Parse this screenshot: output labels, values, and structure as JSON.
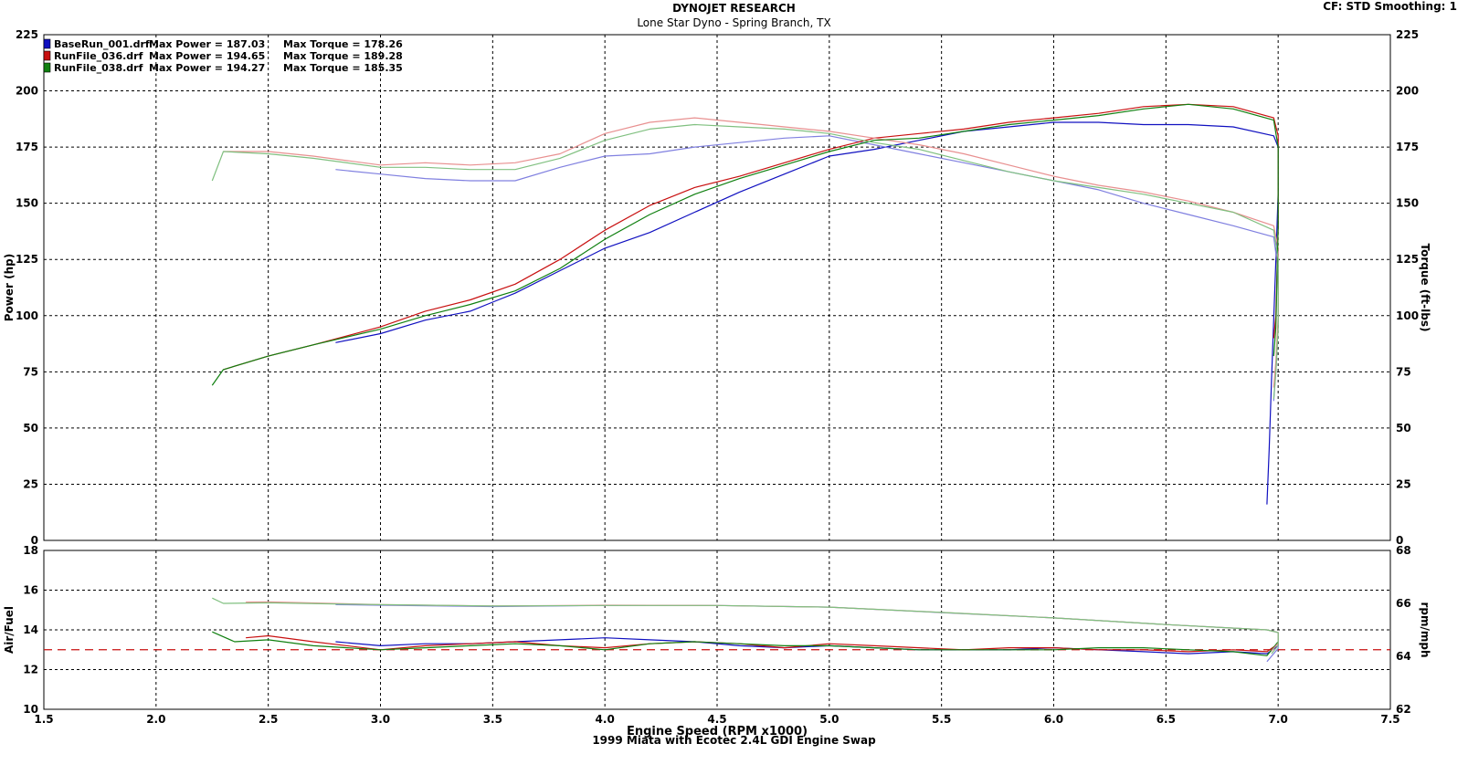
{
  "header": {
    "title": "DYNOJET RESEARCH",
    "subtitle": "Lone Star Dyno - Spring Branch, TX",
    "top_right": "CF: STD  Smoothing: 1",
    "footer": "1999 Miata with Ecotec 2.4L GDI Engine Swap"
  },
  "chart_data": [
    {
      "type": "line",
      "name": "power-torque",
      "xlabel": "Engine Speed (RPM x1000)",
      "ylabel": "Power (hp)",
      "y2label": "Torque (ft-lbs)",
      "xlim": [
        1.5,
        7.5
      ],
      "ylim": [
        0,
        225
      ],
      "y2lim": [
        0,
        225
      ],
      "x_ticks": [
        "1.5",
        "2.0",
        "2.5",
        "3.0",
        "3.5",
        "4.0",
        "4.5",
        "5.0",
        "5.5",
        "6.0",
        "6.5",
        "7.0",
        "7.5"
      ],
      "y_ticks": [
        "0",
        "25",
        "50",
        "75",
        "100",
        "125",
        "150",
        "175",
        "200",
        "225"
      ],
      "grid": true,
      "legend_position": "top-left",
      "legend": [
        {
          "file": "BaseRun_001.drf",
          "power_text": "Max Power = 187.03",
          "torque_text": "Max Torque = 178.26",
          "color": "#1010c0"
        },
        {
          "file": "RunFile_036.drf",
          "power_text": "Max Power = 194.65",
          "torque_text": "Max Torque = 189.28",
          "color": "#c81010"
        },
        {
          "file": "RunFile_038.drf",
          "power_text": "Max Power = 194.27",
          "torque_text": "Max Torque = 185.35",
          "color": "#108010"
        }
      ],
      "series": [
        {
          "name": "BaseRun_001.drf",
          "metric": "power",
          "color": "#1010c0",
          "x": [
            2.8,
            3.0,
            3.2,
            3.4,
            3.5,
            3.6,
            3.8,
            4.0,
            4.2,
            4.4,
            4.6,
            4.8,
            5.0,
            5.2,
            5.4,
            5.6,
            5.8,
            6.0,
            6.2,
            6.4,
            6.6,
            6.8,
            6.98,
            7.0,
            7.0,
            6.99,
            6.98,
            6.97,
            6.96,
            6.95
          ],
          "y": [
            88,
            92,
            98,
            102,
            106,
            110,
            120,
            130,
            137,
            146,
            155,
            163,
            171,
            174,
            178,
            182,
            184,
            186,
            186,
            185,
            185,
            184,
            180,
            175,
            155,
            125,
            98,
            70,
            40,
            16
          ]
        },
        {
          "name": "BaseRun_001.drf",
          "metric": "torque",
          "color": "#8080e0",
          "x": [
            2.8,
            3.0,
            3.2,
            3.4,
            3.6,
            3.8,
            4.0,
            4.2,
            4.4,
            4.6,
            4.8,
            5.0,
            5.2,
            5.4,
            5.6,
            5.8,
            6.0,
            6.2,
            6.4,
            6.6,
            6.8,
            6.98,
            7.0,
            7.0,
            6.99,
            6.98
          ],
          "y": [
            165,
            163,
            161,
            160,
            160,
            166,
            171,
            172,
            175,
            177,
            179,
            180,
            176,
            172,
            168,
            164,
            160,
            156,
            150,
            145,
            140,
            135,
            120,
            95,
            75,
            62
          ]
        },
        {
          "name": "RunFile_036.drf",
          "metric": "power",
          "color": "#c81010",
          "x": [
            2.3,
            2.5,
            2.7,
            3.0,
            3.2,
            3.4,
            3.6,
            3.8,
            4.0,
            4.2,
            4.4,
            4.6,
            4.8,
            5.0,
            5.2,
            5.4,
            5.6,
            5.8,
            6.0,
            6.2,
            6.4,
            6.6,
            6.8,
            6.98,
            7.0,
            7.0,
            6.99,
            6.98
          ],
          "y": [
            76,
            82,
            87,
            95,
            102,
            107,
            114,
            125,
            138,
            149,
            157,
            162,
            168,
            174,
            179,
            181,
            183,
            186,
            188,
            190,
            193,
            194,
            193,
            188,
            180,
            140,
            100,
            90
          ]
        },
        {
          "name": "RunFile_036.drf",
          "metric": "torque",
          "color": "#e89090",
          "x": [
            2.3,
            2.5,
            2.7,
            3.0,
            3.2,
            3.4,
            3.6,
            3.8,
            4.0,
            4.2,
            4.4,
            4.6,
            4.8,
            5.0,
            5.2,
            5.4,
            5.6,
            5.8,
            6.0,
            6.2,
            6.4,
            6.6,
            6.8,
            6.98,
            7.0,
            7.0,
            6.99,
            6.98
          ],
          "y": [
            173,
            173,
            171,
            167,
            168,
            167,
            168,
            172,
            181,
            186,
            188,
            186,
            184,
            182,
            179,
            176,
            172,
            167,
            162,
            158,
            155,
            151,
            146,
            140,
            130,
            100,
            80,
            68
          ]
        },
        {
          "name": "RunFile_038.drf",
          "metric": "power",
          "color": "#108010",
          "x": [
            2.25,
            2.3,
            2.5,
            2.7,
            3.0,
            3.2,
            3.4,
            3.6,
            3.8,
            4.0,
            4.2,
            4.4,
            4.6,
            4.8,
            5.0,
            5.2,
            5.4,
            5.6,
            5.8,
            6.0,
            6.2,
            6.4,
            6.6,
            6.8,
            6.98,
            7.0,
            7.0,
            6.99,
            6.98
          ],
          "y": [
            69,
            76,
            82,
            87,
            94,
            100,
            105,
            111,
            121,
            134,
            145,
            154,
            161,
            167,
            173,
            178,
            179,
            182,
            185,
            187,
            189,
            192,
            194,
            192,
            187,
            175,
            140,
            95,
            82
          ]
        },
        {
          "name": "RunFile_038.drf",
          "metric": "torque",
          "color": "#80c080",
          "x": [
            2.25,
            2.3,
            2.5,
            2.7,
            3.0,
            3.2,
            3.4,
            3.6,
            3.8,
            4.0,
            4.2,
            4.4,
            4.6,
            4.8,
            5.0,
            5.2,
            5.4,
            5.6,
            5.8,
            6.0,
            6.2,
            6.4,
            6.6,
            6.8,
            6.98,
            7.0,
            7.0,
            6.99,
            6.98
          ],
          "y": [
            160,
            173,
            172,
            170,
            166,
            166,
            165,
            165,
            170,
            178,
            183,
            185,
            184,
            183,
            181,
            177,
            174,
            169,
            164,
            160,
            157,
            154,
            150,
            146,
            138,
            125,
            95,
            75,
            63
          ]
        }
      ]
    },
    {
      "type": "line",
      "name": "air-fuel",
      "xlabel": "Engine Speed (RPM x1000)",
      "ylabel": "Air/Fuel",
      "y2label": "rpm/mph",
      "xlim": [
        1.5,
        7.5
      ],
      "ylim": [
        10,
        18
      ],
      "y2lim": [
        62,
        68
      ],
      "x_ticks": [
        "1.5",
        "2.0",
        "2.5",
        "3.0",
        "3.5",
        "4.0",
        "4.5",
        "5.0",
        "5.5",
        "6.0",
        "6.5",
        "7.0",
        "7.5"
      ],
      "y_ticks": [
        "10",
        "12",
        "14",
        "16",
        "18"
      ],
      "y2_ticks": [
        "62",
        "64",
        "66",
        "68"
      ],
      "grid": true,
      "reference_line": {
        "y": 13.0,
        "color": "#c81010",
        "style": "dashed"
      },
      "series": [
        {
          "name": "BaseRun_001.drf",
          "metric": "air_fuel",
          "color": "#1010c0",
          "x": [
            2.8,
            3.0,
            3.2,
            3.4,
            3.6,
            3.8,
            4.0,
            4.2,
            4.4,
            4.6,
            4.8,
            5.0,
            5.2,
            5.4,
            5.6,
            5.8,
            6.0,
            6.2,
            6.4,
            6.6,
            6.8,
            6.95,
            7.0
          ],
          "y": [
            13.4,
            13.2,
            13.3,
            13.3,
            13.4,
            13.5,
            13.6,
            13.5,
            13.4,
            13.2,
            13.1,
            13.2,
            13.1,
            13.0,
            13.0,
            13.0,
            13.1,
            13.0,
            12.9,
            12.8,
            12.9,
            12.8,
            13.2
          ]
        },
        {
          "name": "RunFile_036.drf",
          "metric": "air_fuel",
          "color": "#c81010",
          "x": [
            2.4,
            2.5,
            2.7,
            3.0,
            3.2,
            3.4,
            3.6,
            3.8,
            4.0,
            4.2,
            4.4,
            4.6,
            4.8,
            5.0,
            5.2,
            5.4,
            5.6,
            5.8,
            6.0,
            6.2,
            6.4,
            6.6,
            6.8,
            6.95,
            7.0
          ],
          "y": [
            13.6,
            13.7,
            13.4,
            13.0,
            13.2,
            13.3,
            13.4,
            13.2,
            13.1,
            13.3,
            13.4,
            13.3,
            13.1,
            13.3,
            13.2,
            13.1,
            13.0,
            13.1,
            13.1,
            13.0,
            13.0,
            12.9,
            13.0,
            12.9,
            13.3
          ]
        },
        {
          "name": "RunFile_038.drf",
          "metric": "air_fuel",
          "color": "#108010",
          "x": [
            2.25,
            2.35,
            2.5,
            2.7,
            3.0,
            3.2,
            3.4,
            3.6,
            3.8,
            4.0,
            4.2,
            4.4,
            4.6,
            4.8,
            5.0,
            5.2,
            5.4,
            5.6,
            5.8,
            6.0,
            6.2,
            6.4,
            6.6,
            6.8,
            6.95,
            7.0
          ],
          "y": [
            13.9,
            13.4,
            13.5,
            13.2,
            13.0,
            13.1,
            13.2,
            13.3,
            13.2,
            13.0,
            13.3,
            13.4,
            13.3,
            13.2,
            13.2,
            13.1,
            13.0,
            13.0,
            13.0,
            13.0,
            13.1,
            13.1,
            13.0,
            12.9,
            12.7,
            13.4
          ]
        },
        {
          "name": "BaseRun_001.drf",
          "metric": "rpm_per_mph",
          "axis": "y2",
          "color": "#8080e0",
          "x": [
            2.8,
            3.0,
            3.5,
            4.0,
            4.5,
            5.0,
            5.5,
            6.0,
            6.5,
            6.95,
            7.0,
            7.0,
            6.95
          ],
          "y": [
            65.95,
            65.93,
            65.88,
            65.92,
            65.92,
            65.86,
            65.65,
            65.45,
            65.2,
            65.0,
            64.9,
            64.3,
            63.8
          ]
        },
        {
          "name": "RunFile_036.drf",
          "metric": "rpm_per_mph",
          "axis": "y2",
          "color": "#e89090",
          "x": [
            2.4,
            2.5,
            3.0,
            3.5,
            4.0,
            4.5,
            5.0,
            5.5,
            6.0,
            6.5,
            6.95,
            7.0,
            7.0,
            6.97
          ],
          "y": [
            66.05,
            66.06,
            65.95,
            65.9,
            65.93,
            65.92,
            65.86,
            65.66,
            65.45,
            65.2,
            65.0,
            64.9,
            64.5,
            64.2
          ]
        },
        {
          "name": "RunFile_038.drf",
          "metric": "rpm_per_mph",
          "axis": "y2",
          "color": "#80c080",
          "x": [
            2.25,
            2.3,
            2.5,
            3.0,
            3.5,
            4.0,
            4.5,
            5.0,
            5.5,
            6.0,
            6.5,
            6.95,
            7.0,
            7.0,
            6.97
          ],
          "y": [
            66.2,
            66.0,
            66.02,
            65.95,
            65.9,
            65.92,
            65.92,
            65.86,
            65.66,
            65.45,
            65.2,
            65.0,
            64.9,
            64.4,
            64.1
          ]
        }
      ]
    }
  ]
}
